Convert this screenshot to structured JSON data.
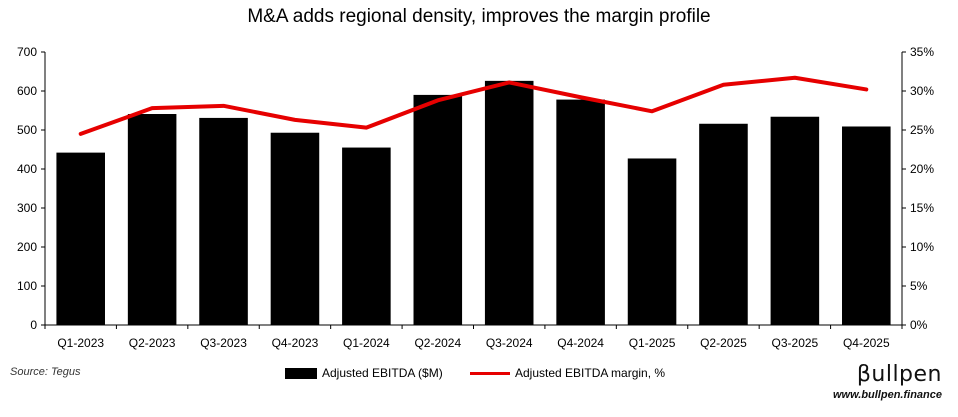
{
  "page": {
    "title": "M&A adds regional density, improves the margin profile",
    "source": "Source: Tegus",
    "brand_name": "βullpen",
    "brand_url": "www.bullpen.finance"
  },
  "chart_data": {
    "type": "bar",
    "title": "M&A adds regional density, improves the margin profile",
    "categories": [
      "Q1-2023",
      "Q2-2023",
      "Q3-2023",
      "Q4-2023",
      "Q1-2024",
      "Q2-2024",
      "Q3-2024",
      "Q4-2024",
      "Q1-2025",
      "Q2-2025",
      "Q3-2025",
      "Q4-2025"
    ],
    "series": [
      {
        "name": "Adjusted EBITDA ($M)",
        "type": "bar",
        "axis": "left",
        "values": [
          442,
          541,
          531,
          493,
          455,
          590,
          626,
          578,
          427,
          516,
          534,
          509
        ]
      },
      {
        "name": "Adjusted EBITDA margin, %",
        "type": "line",
        "axis": "right",
        "values": [
          24.5,
          27.8,
          28.1,
          26.3,
          25.3,
          28.8,
          31.1,
          29.2,
          27.4,
          30.8,
          31.7,
          30.2
        ]
      }
    ],
    "y_left": {
      "min": 0,
      "max": 700,
      "step": 100,
      "ticks": [
        "0",
        "100",
        "200",
        "300",
        "400",
        "500",
        "600",
        "700"
      ]
    },
    "y_right": {
      "min": 0,
      "max": 35,
      "step": 5,
      "ticks": [
        "0%",
        "5%",
        "10%",
        "15%",
        "20%",
        "25%",
        "30%",
        "35%"
      ]
    },
    "colors": {
      "bar": "#000000",
      "line": "#e60000"
    },
    "legend_position": "bottom"
  }
}
